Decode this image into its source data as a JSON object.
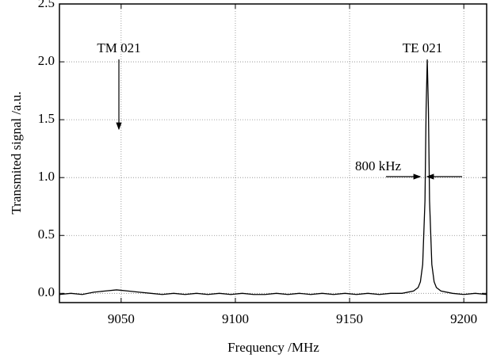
{
  "chart_data": {
    "type": "line",
    "x_label": "Frequency /MHz",
    "y_label": "Transmited signal /a.u.",
    "annotations": [
      "TM 021",
      "TE 021",
      "800 kHz"
    ],
    "xlim": [
      9023,
      9210
    ],
    "ylim": [
      -0.08,
      2.5
    ],
    "xticks": [
      9050,
      9100,
      9150,
      9200
    ],
    "yticks": [
      {
        "value": 0,
        "label": "0.0"
      },
      {
        "value": 0.5,
        "label": "0.5"
      },
      {
        "value": 1,
        "label": "1.0"
      },
      {
        "value": 1.5,
        "label": "1.5"
      },
      {
        "value": 2,
        "label": "2.0"
      },
      {
        "value": 2.5,
        "label": "2.5"
      }
    ],
    "grid": true,
    "series": [
      {
        "color": "#000000",
        "x": [
          9023,
          9028,
          9033,
          9038,
          9043,
          9048,
          9053,
          9058,
          9063,
          9068,
          9073,
          9078,
          9083,
          9088,
          9093,
          9098,
          9103,
          9108,
          9113,
          9118,
          9123,
          9128,
          9133,
          9138,
          9143,
          9148,
          9153,
          9158,
          9163,
          9168,
          9173,
          9178,
          9180,
          9181,
          9182,
          9183,
          9183.5,
          9184,
          9184.5,
          9185,
          9186,
          9187,
          9188,
          9190,
          9195,
          9200,
          9205,
          9210
        ],
        "values": [
          -0.01,
          0,
          -0.01,
          0.01,
          0.02,
          0.03,
          0.02,
          0.01,
          0,
          -0.01,
          0,
          -0.01,
          0,
          -0.01,
          0,
          -0.01,
          0,
          -0.01,
          -0.01,
          0,
          -0.01,
          0,
          -0.01,
          0,
          -0.01,
          0,
          -0.01,
          0,
          -0.01,
          0,
          0,
          0.02,
          0.05,
          0.1,
          0.25,
          0.8,
          1.6,
          2.02,
          1.6,
          0.8,
          0.25,
          0.1,
          0.05,
          0.02,
          0,
          -0.01,
          0,
          -0.01
        ]
      }
    ]
  }
}
